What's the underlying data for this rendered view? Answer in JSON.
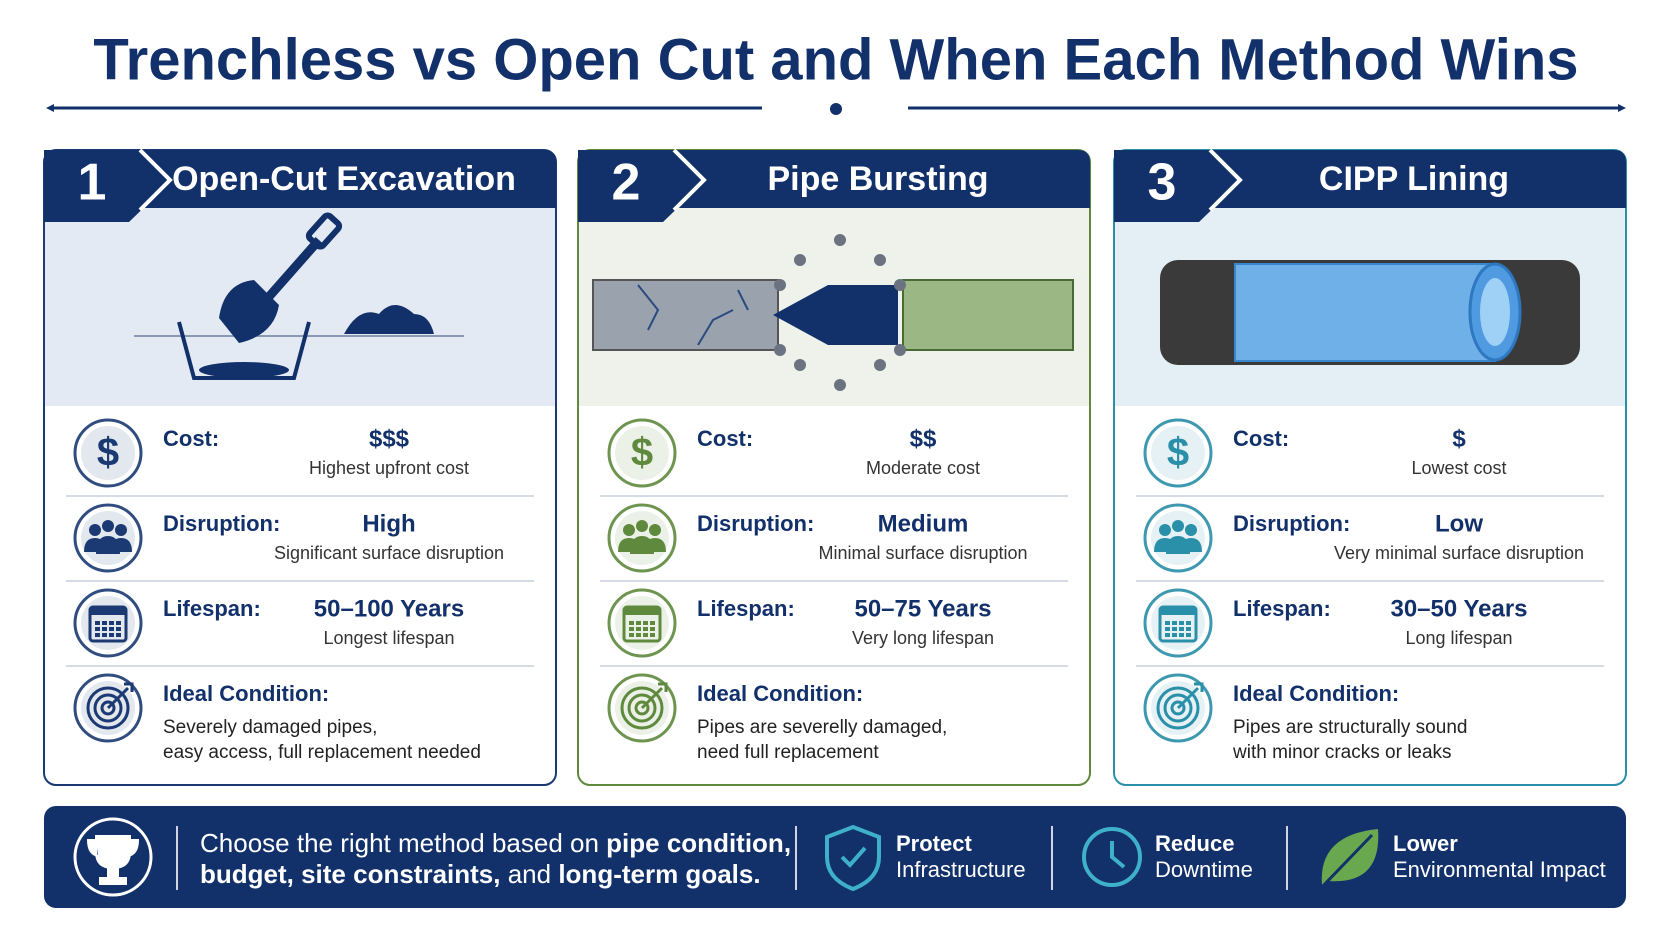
{
  "title": "Trenchless vs Open Cut and When Each Method Wins",
  "cards": [
    {
      "number": "1",
      "title": "Open-Cut Excavation",
      "accent": "#1b3a73",
      "panel": "#e4eaf3",
      "rows": [
        {
          "icon": "$",
          "label": "Cost:",
          "value": "$$$",
          "note": "Highest upfront cost"
        },
        {
          "label": "Disruption:",
          "value": "High",
          "note": "Significant surface disruption"
        },
        {
          "label": "Lifespan:",
          "value": "50–100 Years",
          "note": "Longest lifespan"
        }
      ],
      "ideal_label": "Ideal Condition:",
      "ideal_lines": [
        "Severely damaged pipes,",
        "easy access, full replacement needed"
      ]
    },
    {
      "number": "2",
      "title": "Pipe Bursting",
      "accent": "#5f8a3e",
      "panel": "#eef2ea",
      "rows": [
        {
          "icon": "$",
          "label": "Cost:",
          "value": "$$",
          "note": "Moderate cost"
        },
        {
          "label": "Disruption:",
          "value": "Medium",
          "note": "Minimal surface disruption"
        },
        {
          "label": "Lifespan:",
          "value": "50–75 Years",
          "note": "Very long lifespan"
        }
      ],
      "ideal_label": "Ideal Condition:",
      "ideal_lines": [
        "Pipes are severelly damaged,",
        "need full replacement"
      ]
    },
    {
      "number": "3",
      "title": "CIPP Lining",
      "accent": "#2a8fa8",
      "panel": "#e4eef5",
      "rows": [
        {
          "icon": "$",
          "label": "Cost:",
          "value": "$",
          "note": "Lowest cost"
        },
        {
          "label": "Disruption:",
          "value": "Low",
          "note": "Very minimal surface disruption"
        },
        {
          "label": "Lifespan:",
          "value": "30–50 Years",
          "note": "Long lifespan"
        }
      ],
      "ideal_label": "Ideal Condition:",
      "ideal_lines": [
        "Pipes are structurally sound",
        "with minor cracks or leaks"
      ]
    }
  ],
  "footer": {
    "message": [
      [
        {
          "text": "Choose the right method based on ",
          "bold": false
        },
        {
          "text": "pipe condition,",
          "bold": true
        }
      ],
      [
        {
          "text": "budget, site constraints,",
          "bold": true
        },
        {
          "text": " and ",
          "bold": false
        },
        {
          "text": "long-term goals.",
          "bold": true
        }
      ]
    ],
    "badges": [
      {
        "lines": [
          "Protect",
          "Infrastructure"
        ]
      },
      {
        "lines": [
          "Reduce",
          "Downtime"
        ]
      },
      {
        "lines": [
          "Lower",
          "Environmental Impact"
        ]
      }
    ]
  }
}
